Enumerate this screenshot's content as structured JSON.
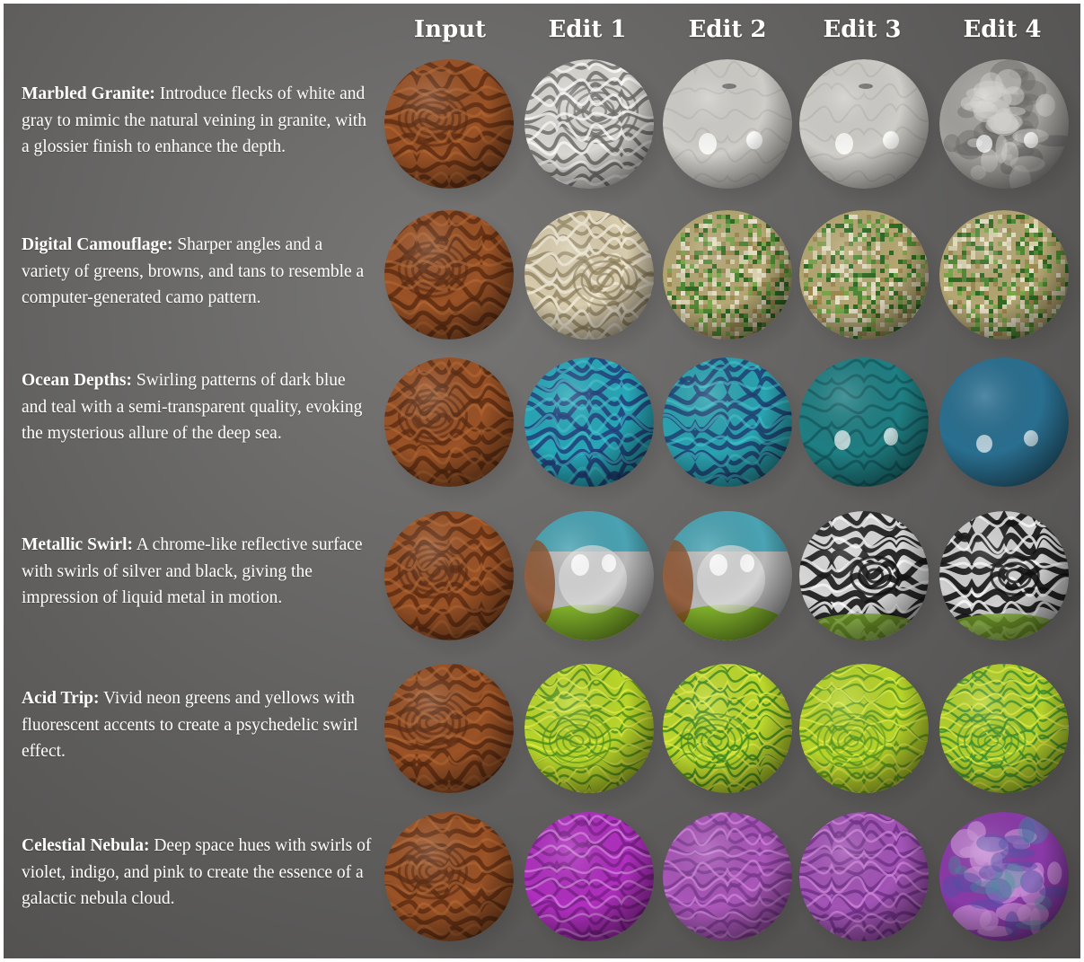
{
  "columns": [
    "Input",
    "Edit 1",
    "Edit 2",
    "Edit 3",
    "Edit 4"
  ],
  "rows": [
    {
      "title": "Marbled Granite:",
      "description": " Introduce flecks of white and gray to mimic the natural veining in granite, with a glossier finish to enhance the depth.",
      "spheres": [
        {
          "material": "wood-swirl",
          "base": "#9a5226",
          "accent": "#5a2a10"
        },
        {
          "material": "marble-swirl",
          "base": "#d9d7d2",
          "accent": "#6f6e6b"
        },
        {
          "material": "glossy-marble",
          "base": "#cfcdc8",
          "accent": "#a9a7a2"
        },
        {
          "material": "glossy-marble",
          "base": "#cfcdc8",
          "accent": "#a9a7a2"
        },
        {
          "material": "granite",
          "base": "#a3a19d",
          "accent": "#6d6b68"
        }
      ]
    },
    {
      "title": "Digital Camouflage:",
      "description": " Sharper angles and a variety of greens, browns, and tans to resemble a computer-generated camo pattern.",
      "spheres": [
        {
          "material": "wood-swirl",
          "base": "#9a5226",
          "accent": "#5a2a10"
        },
        {
          "material": "tan-swirl",
          "base": "#d8ccad",
          "accent": "#8c7d5a"
        },
        {
          "material": "pixel-camo",
          "base": "#b5a773",
          "accent": "#4f8a35"
        },
        {
          "material": "pixel-camo",
          "base": "#b5a773",
          "accent": "#4f8a35"
        },
        {
          "material": "pixel-camo",
          "base": "#b5a773",
          "accent": "#4f8a35"
        }
      ]
    },
    {
      "title": "Ocean Depths:",
      "description": " Swirling patterns of dark blue and teal with a semi-transparent quality, evoking the mysterious allure of the deep sea.",
      "spheres": [
        {
          "material": "wood-swirl",
          "base": "#9a5226",
          "accent": "#5a2a10"
        },
        {
          "material": "teal-swirl",
          "base": "#27a7b8",
          "accent": "#223d7a"
        },
        {
          "material": "teal-swirl",
          "base": "#2aa2b0",
          "accent": "#1f3f73"
        },
        {
          "material": "glossy-teal",
          "base": "#1f7f83",
          "accent": "#0f4f55"
        },
        {
          "material": "glossy-blue",
          "base": "#2a6f90",
          "accent": "#1b4d6b"
        }
      ]
    },
    {
      "title": "Metallic Swirl:",
      "description": " A chrome-like reflective surface with swirls of silver and black, giving the impression of liquid metal in motion.",
      "spheres": [
        {
          "material": "wood-swirl",
          "base": "#9a5226",
          "accent": "#5a2a10"
        },
        {
          "material": "chrome",
          "base": "#b8b8b8",
          "accent": "#7fb02a"
        },
        {
          "material": "chrome",
          "base": "#b8b8b8",
          "accent": "#7fb02a"
        },
        {
          "material": "chrome-swirl",
          "base": "#d9d9d9",
          "accent": "#151515"
        },
        {
          "material": "chrome-swirl",
          "base": "#cfcfcf",
          "accent": "#101010"
        }
      ]
    },
    {
      "title": "Acid Trip:",
      "description": " Vivid neon greens and yellows with fluorescent accents to create a psychedelic swirl effect.",
      "spheres": [
        {
          "material": "wood-swirl",
          "base": "#9a5226",
          "accent": "#5a2a10"
        },
        {
          "material": "neon-swirl",
          "base": "#b9d62a",
          "accent": "#4f8f1c"
        },
        {
          "material": "neon-swirl",
          "base": "#bcd82c",
          "accent": "#3f8a22"
        },
        {
          "material": "neon-swirl",
          "base": "#b7d42a",
          "accent": "#5a9a22"
        },
        {
          "material": "neon-swirl",
          "base": "#b3d12c",
          "accent": "#3f9030"
        }
      ]
    },
    {
      "title": "Celestial Nebula:",
      "description": " Deep space hues with swirls of violet, indigo, and pink to create the essence of a galactic nebula cloud.",
      "spheres": [
        {
          "material": "wood-swirl",
          "base": "#9a5226",
          "accent": "#5a2a10"
        },
        {
          "material": "violet-swirl",
          "base": "#b02fbf",
          "accent": "#7a1f8a"
        },
        {
          "material": "violet-swirl",
          "base": "#a956b8",
          "accent": "#7a3a90"
        },
        {
          "material": "violet-swirl",
          "base": "#a354b6",
          "accent": "#6f2f8a"
        },
        {
          "material": "nebula-mottle",
          "base": "#8a3aa8",
          "accent": "#c98fd6"
        }
      ]
    }
  ]
}
